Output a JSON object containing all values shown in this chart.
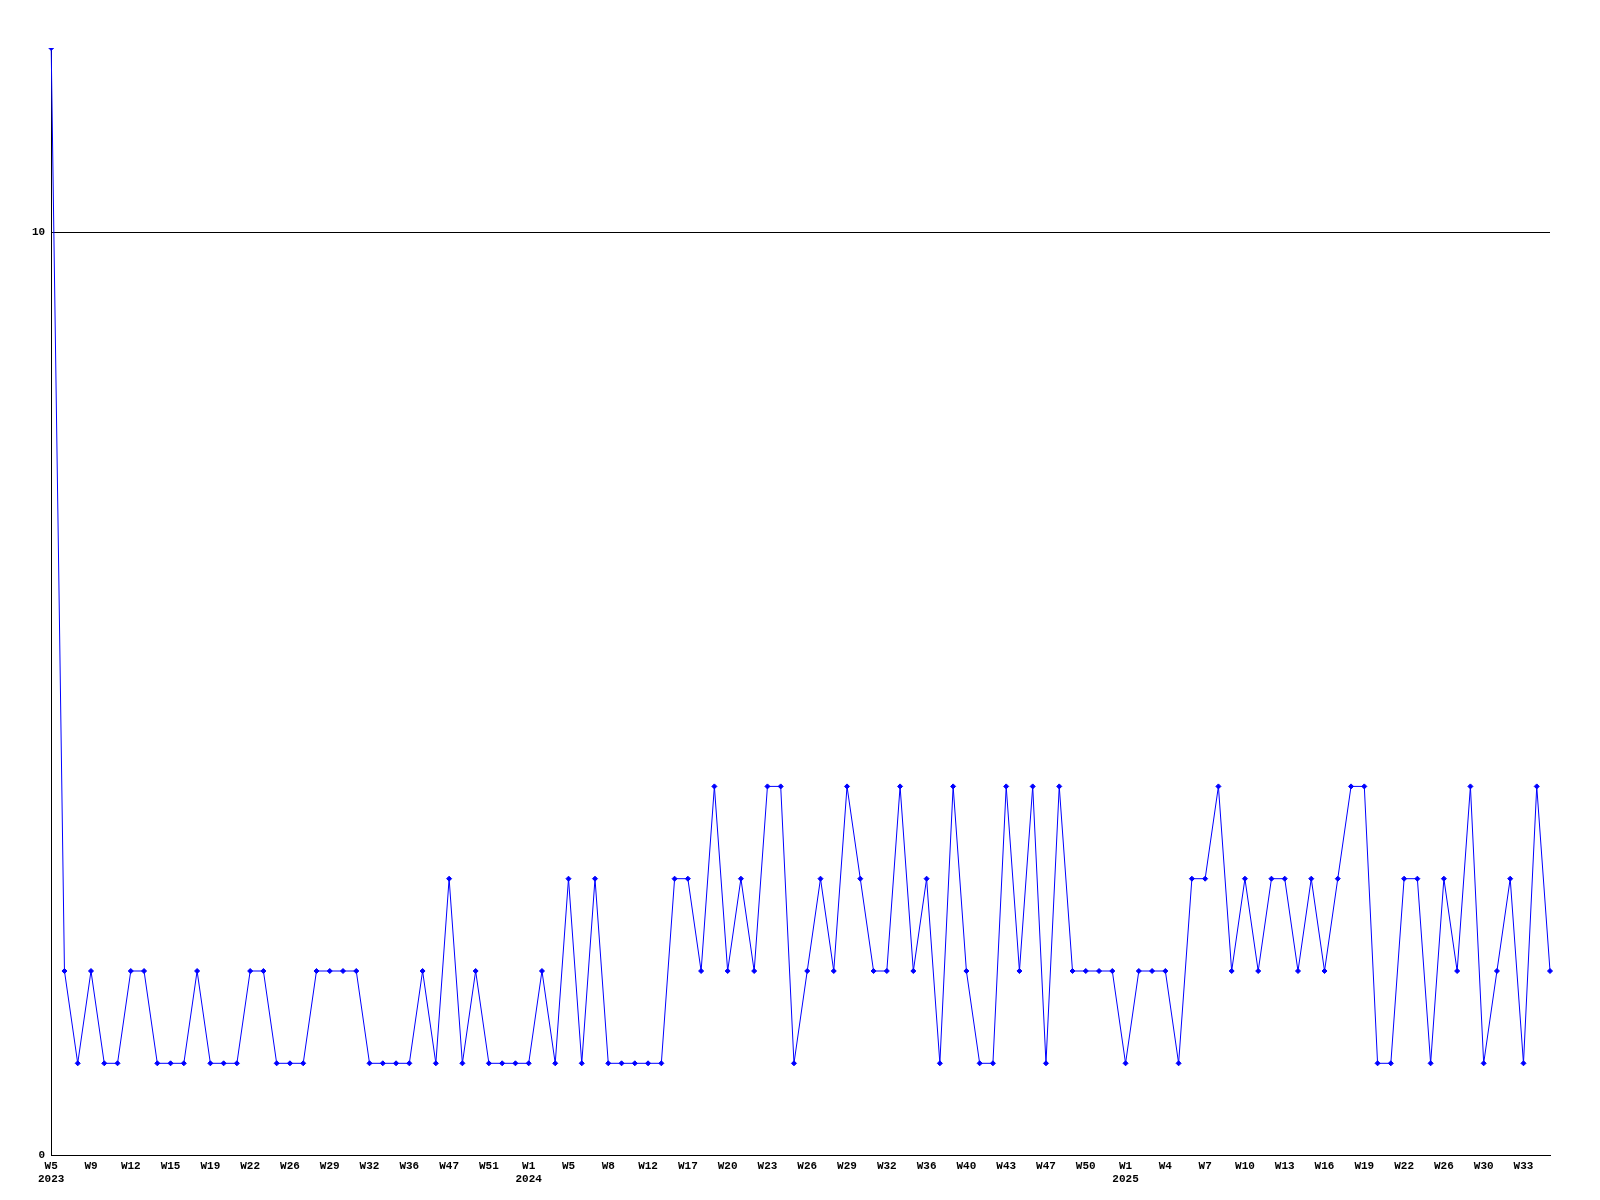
{
  "chart_data": {
    "type": "line",
    "categories": [
      "W5\n2023",
      null,
      null,
      "W9",
      null,
      null,
      "W12",
      null,
      null,
      "W15",
      null,
      null,
      "W19",
      null,
      null,
      "W22",
      null,
      null,
      "W26",
      null,
      null,
      "W29",
      null,
      null,
      "W32",
      null,
      null,
      "W36",
      null,
      null,
      "W47",
      null,
      null,
      "W51",
      null,
      null,
      "W1\n2024",
      null,
      null,
      "W5",
      null,
      null,
      "W8",
      null,
      null,
      "W12",
      null,
      null,
      "W17",
      null,
      null,
      "W20",
      null,
      null,
      "W23",
      null,
      null,
      "W26",
      null,
      null,
      "W29",
      null,
      null,
      "W32",
      null,
      null,
      "W36",
      null,
      null,
      "W40",
      null,
      null,
      "W43",
      null,
      null,
      "W47",
      null,
      null,
      "W50",
      null,
      null,
      "W1\n2025",
      null,
      null,
      "W4",
      null,
      null,
      "W7",
      null,
      null,
      "W10",
      null,
      null,
      "W13",
      null,
      null,
      "W16",
      null,
      null,
      "W19",
      null,
      null,
      "W22",
      null,
      null,
      "W26",
      null,
      null,
      "W30",
      null,
      null,
      "W33",
      null,
      null
    ],
    "series": [
      {
        "color": "#0000ff",
        "values": [
          12,
          2,
          1,
          2,
          1,
          1,
          2,
          2,
          1,
          1,
          1,
          2,
          1,
          1,
          1,
          2,
          2,
          1,
          1,
          1,
          2,
          2,
          2,
          2,
          1,
          1,
          1,
          1,
          2,
          1,
          3,
          1,
          2,
          1,
          1,
          1,
          1,
          2,
          1,
          3,
          1,
          3,
          1,
          1,
          1,
          1,
          1,
          3,
          3,
          2,
          4,
          2,
          3,
          2,
          4,
          4,
          1,
          2,
          3,
          2,
          4,
          3,
          2,
          2,
          4,
          2,
          3,
          1,
          4,
          2,
          1,
          1,
          4,
          2,
          4,
          1,
          4,
          2,
          2,
          2,
          2,
          1,
          2,
          2,
          2,
          1,
          3,
          3,
          4,
          2,
          3,
          2,
          3,
          3,
          2,
          3,
          2,
          3,
          4,
          4,
          1,
          1,
          3,
          3,
          1,
          3,
          2,
          4,
          1,
          2,
          3,
          1,
          4,
          2
        ]
      }
    ],
    "ylim": [
      0,
      12
    ],
    "yticks": [
      0,
      10
    ],
    "grid": "y",
    "legend": false,
    "marker": "diamond"
  }
}
